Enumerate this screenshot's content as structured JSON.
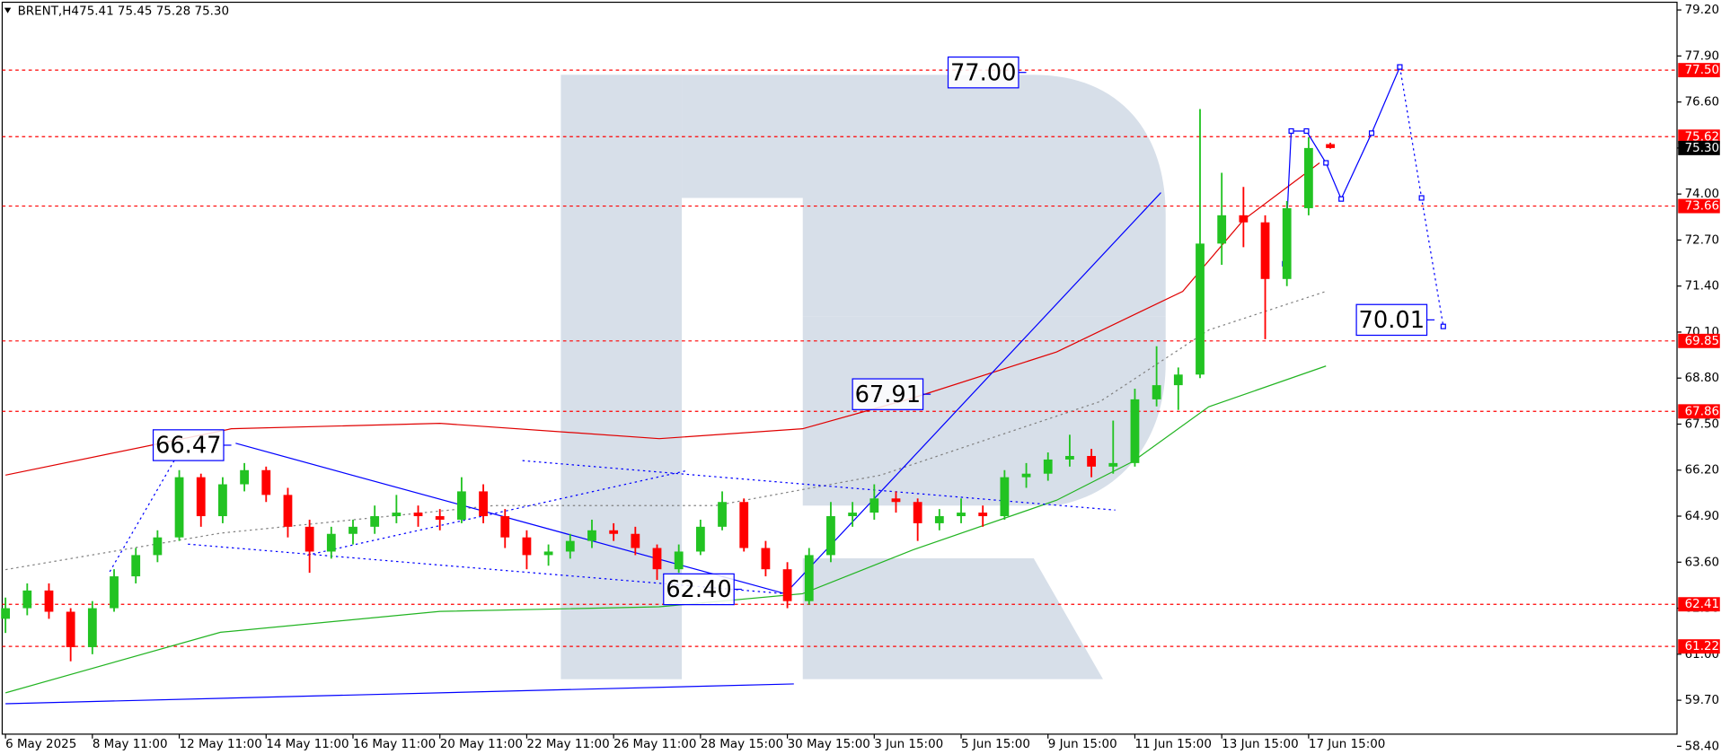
{
  "chart_data": {
    "type": "candlestick",
    "symbol": "BRENT,H4",
    "quote": "75.41 75.45 75.28 75.30",
    "up_color": "#22c322",
    "down_color": "#ff0000",
    "categories": [
      "6 May 2025",
      null,
      null,
      null,
      "8 May 11:00",
      null,
      null,
      null,
      "12 May 11:00",
      null,
      null,
      null,
      "14 May 11:00",
      null,
      null,
      null,
      "16 May 11:00",
      null,
      null,
      null,
      "20 May 11:00",
      null,
      null,
      null,
      "22 May 11:00",
      null,
      null,
      null,
      "26 May 11:00",
      null,
      null,
      null,
      "28 May 15:00",
      null,
      null,
      null,
      "30 May 15:00",
      null,
      null,
      null,
      "3 Jun 15:00",
      null,
      null,
      null,
      "5 Jun 15:00",
      null,
      null,
      null,
      "9 Jun 15:00",
      null,
      null,
      null,
      "11 Jun 15:00",
      null,
      null,
      null,
      "13 Jun 15:00",
      null,
      null,
      null,
      "17 Jun 15:00",
      null
    ],
    "open": [
      62.0,
      62.3,
      62.8,
      62.2,
      61.2,
      62.3,
      63.2,
      63.8,
      64.3,
      66.0,
      64.9,
      65.8,
      66.2,
      65.5,
      64.6,
      63.9,
      64.4,
      64.6,
      64.9,
      65.0,
      64.9,
      64.8,
      65.6,
      64.9,
      64.3,
      63.8,
      63.9,
      64.2,
      64.5,
      64.4,
      64.0,
      63.4,
      63.9,
      64.6,
      65.3,
      64.0,
      63.4,
      62.5,
      63.8,
      64.9,
      65.0,
      65.4,
      65.3,
      64.7,
      64.9,
      65.0,
      64.9,
      66.0,
      66.1,
      66.5,
      66.6,
      66.3,
      66.4,
      68.2,
      68.6,
      68.9,
      72.6,
      73.4,
      73.2,
      71.6,
      73.6,
      75.41
    ],
    "high": [
      62.6,
      63.0,
      63.0,
      62.3,
      62.5,
      63.4,
      64.0,
      64.5,
      66.2,
      66.1,
      66.0,
      66.4,
      66.3,
      65.7,
      64.8,
      64.6,
      64.8,
      65.2,
      65.5,
      65.2,
      65.1,
      66.0,
      65.8,
      65.1,
      64.5,
      64.1,
      64.4,
      64.8,
      64.7,
      64.6,
      64.1,
      64.1,
      64.8,
      65.6,
      65.4,
      64.2,
      63.6,
      64.0,
      65.3,
      65.3,
      65.8,
      65.6,
      65.4,
      65.1,
      65.4,
      65.2,
      66.2,
      66.4,
      66.7,
      67.2,
      66.8,
      67.6,
      68.5,
      69.7,
      69.1,
      76.4,
      74.6,
      74.2,
      73.4,
      73.8,
      75.6,
      75.45
    ],
    "low": [
      61.6,
      62.1,
      62.0,
      60.8,
      61.0,
      62.2,
      63.0,
      63.6,
      64.2,
      64.6,
      64.7,
      65.6,
      65.3,
      64.3,
      63.3,
      63.7,
      64.1,
      64.4,
      64.7,
      64.6,
      64.5,
      64.7,
      64.7,
      64.0,
      63.4,
      63.5,
      63.7,
      64.0,
      64.2,
      63.8,
      63.1,
      63.3,
      63.8,
      64.5,
      63.9,
      63.2,
      62.3,
      62.4,
      63.6,
      64.6,
      64.8,
      65.0,
      64.2,
      64.5,
      64.7,
      64.6,
      64.8,
      65.7,
      65.9,
      66.3,
      66.0,
      66.1,
      66.3,
      68.0,
      67.9,
      68.8,
      72.0,
      72.5,
      69.9,
      71.4,
      73.4,
      75.28
    ],
    "close": [
      62.3,
      62.8,
      62.2,
      61.2,
      62.3,
      63.2,
      63.8,
      64.3,
      66.0,
      64.9,
      65.8,
      66.2,
      65.5,
      64.6,
      63.9,
      64.4,
      64.6,
      64.9,
      65.0,
      64.9,
      64.8,
      65.6,
      64.9,
      64.3,
      63.8,
      63.9,
      64.2,
      64.5,
      64.4,
      64.0,
      63.4,
      63.9,
      64.6,
      65.3,
      64.0,
      63.4,
      62.5,
      63.8,
      64.9,
      65.0,
      65.4,
      65.3,
      64.7,
      64.9,
      65.0,
      64.9,
      66.0,
      66.1,
      66.5,
      66.6,
      66.3,
      66.4,
      68.2,
      68.6,
      68.9,
      72.6,
      73.4,
      73.2,
      71.6,
      73.6,
      75.3,
      75.3
    ],
    "xlim": [
      0,
      77
    ],
    "ylim": [
      58.4,
      79.4
    ],
    "yticks": [
      {
        "value": 79.2,
        "label": "79.20"
      },
      {
        "value": 77.9,
        "label": "77.90"
      },
      {
        "value": 76.6,
        "label": "76.60"
      },
      {
        "value": 75.3,
        "label": "75.30"
      },
      {
        "value": 74.0,
        "label": "74.00"
      },
      {
        "value": 72.7,
        "label": "72.70"
      },
      {
        "value": 71.4,
        "label": "71.40"
      },
      {
        "value": 70.1,
        "label": "70.10"
      },
      {
        "value": 68.8,
        "label": "68.80"
      },
      {
        "value": 67.5,
        "label": "67.50"
      },
      {
        "value": 66.2,
        "label": "66.20"
      },
      {
        "value": 64.9,
        "label": "64.90"
      },
      {
        "value": 63.6,
        "label": "63.60"
      },
      {
        "value": 62.3,
        "label": "62.30"
      },
      {
        "value": 61.0,
        "label": "61.00"
      },
      {
        "value": 59.7,
        "label": "59.70"
      },
      {
        "value": 58.4,
        "label": "58.40"
      }
    ],
    "levels": [
      {
        "value": 77.5,
        "label": "77.50"
      },
      {
        "value": 75.62,
        "label": "75.62"
      },
      {
        "value": 73.66,
        "label": "73.66"
      },
      {
        "value": 69.85,
        "label": "69.85"
      },
      {
        "value": 67.86,
        "label": "67.86"
      },
      {
        "value": 62.41,
        "label": "62.41"
      },
      {
        "value": 61.22,
        "label": "61.22"
      }
    ],
    "level_color": "#ff0000",
    "price_tag": {
      "value": 75.3,
      "label": "75.30"
    },
    "overlays": [
      {
        "color": "#e00000",
        "style": "solid",
        "x": [
          0,
          10.4,
          20,
          30.1,
          36.7,
          41.8,
          48.4,
          54.2,
          57,
          60.5
        ],
        "values": [
          66.06,
          67.37,
          67.52,
          67.09,
          67.37,
          68.24,
          69.54,
          71.25,
          73.27,
          74.88
        ]
      },
      {
        "color": "#22b422",
        "style": "solid",
        "x": [
          0,
          9.9,
          20,
          30.1,
          36.7,
          41.8,
          48.4,
          51.9,
          55.4,
          60.8
        ],
        "values": [
          59.91,
          61.62,
          62.21,
          62.34,
          62.71,
          63.95,
          65.35,
          66.44,
          67.99,
          69.14
        ]
      },
      {
        "color": "#808080",
        "style": "dotted",
        "x": [
          0,
          9.9,
          22.5,
          32.7,
          40.3,
          50.4,
          55.4,
          60.8
        ],
        "values": [
          63.39,
          64.42,
          65.2,
          65.2,
          66.06,
          68.14,
          70.16,
          71.25
        ]
      },
      {
        "color": "#0000ff",
        "style": "solid",
        "x": [
          0,
          36.3
        ],
        "values": [
          59.6,
          60.16
        ]
      },
      {
        "color": "#0000ff",
        "style": "solid",
        "x": [
          10.6,
          35.9
        ],
        "values": [
          66.96,
          62.71
        ]
      },
      {
        "color": "#0000ff",
        "style": "solid",
        "x": [
          35.9,
          53.2
        ],
        "values": [
          62.71,
          74.04
        ]
      },
      {
        "color": "#0000ff",
        "style": "dotted",
        "x": [
          8.4,
          35.9
        ],
        "values": [
          64.11,
          62.71
        ]
      },
      {
        "color": "#0000ff",
        "style": "dotted",
        "x": [
          13.9,
          31.4
        ],
        "values": [
          63.8,
          66.19
        ]
      },
      {
        "color": "#0000ff",
        "style": "dotted",
        "x": [
          23.8,
          51.1
        ],
        "values": [
          66.47,
          65.07
        ]
      },
      {
        "color": "#0000ff",
        "style": "dotted",
        "x": [
          4.8,
          7.8
        ],
        "values": [
          63.33,
          66.5
        ]
      },
      {
        "color": "#0000ff",
        "style": "solid",
        "markers": true,
        "x": [
          58.9,
          59.2,
          59.9,
          60.8,
          61.5,
          62.9,
          64.2
        ],
        "values": [
          72.03,
          75.78,
          75.78,
          74.88,
          73.86,
          75.72,
          77.59
        ]
      },
      {
        "color": "#0000ff",
        "style": "dotted",
        "markers": true,
        "x": [
          64.2,
          65.2,
          66.2
        ],
        "values": [
          77.59,
          73.89,
          70.26
        ]
      }
    ],
    "annotations": [
      {
        "value": 77.0,
        "label": "77.00",
        "x": 43.4
      },
      {
        "value": 67.91,
        "label": "67.91",
        "x": 39.0
      },
      {
        "value": 66.47,
        "label": "66.47",
        "x": 6.8
      },
      {
        "value": 62.4,
        "label": "62.40",
        "x": 30.3
      },
      {
        "value": 70.01,
        "label": "70.01",
        "x": 62.2
      }
    ],
    "annotation_color": "#0000ff"
  }
}
